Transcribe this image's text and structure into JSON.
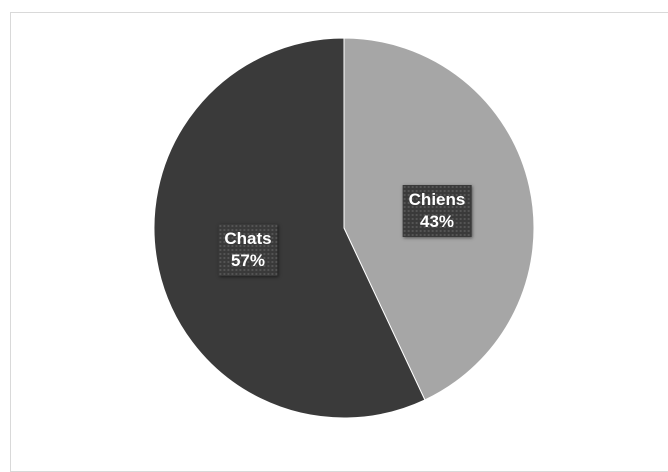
{
  "chart_data": {
    "type": "pie",
    "slices": [
      {
        "label": "Chiens",
        "value": 43,
        "percent_label": "43%",
        "color": "#a6a6a6"
      },
      {
        "label": "Chats",
        "value": 57,
        "percent_label": "57%",
        "color": "#3a3a3a"
      }
    ],
    "start_angle_deg": 0,
    "direction": "clockwise"
  }
}
